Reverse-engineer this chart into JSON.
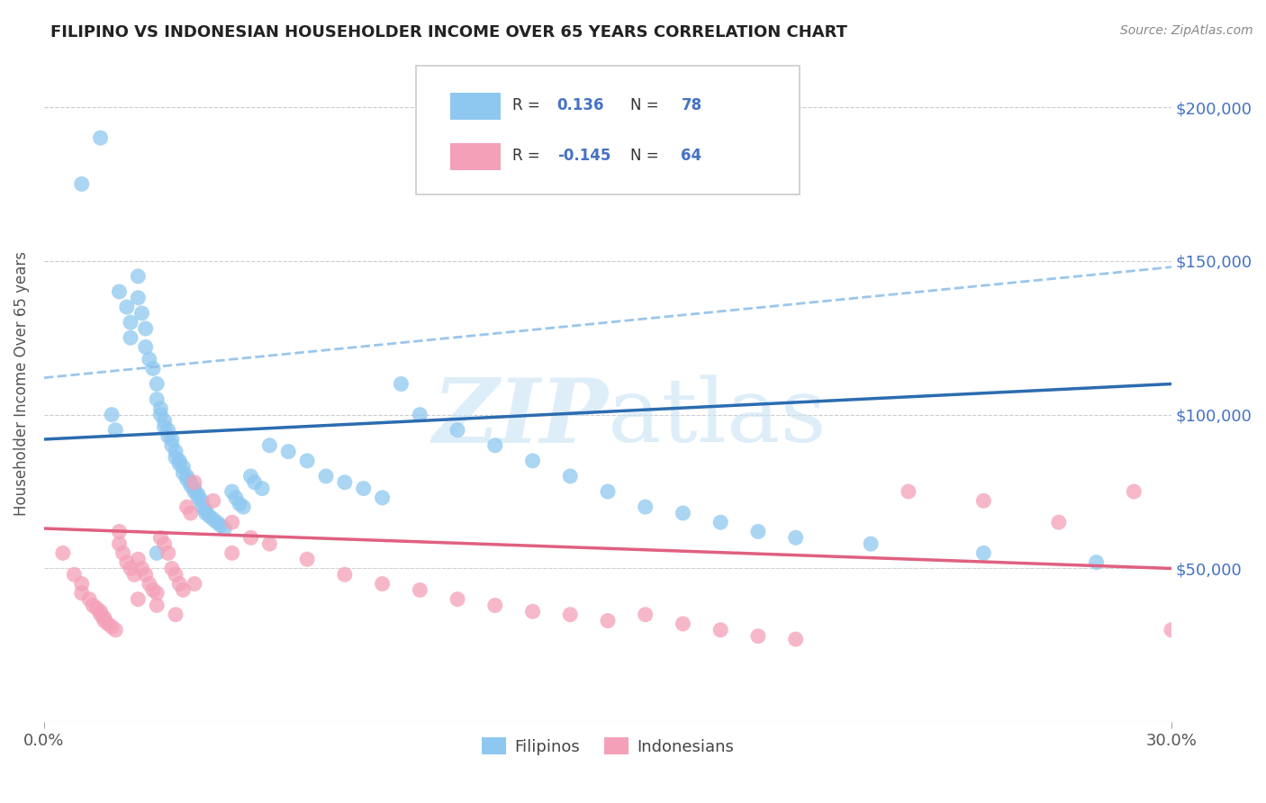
{
  "title": "FILIPINO VS INDONESIAN HOUSEHOLDER INCOME OVER 65 YEARS CORRELATION CHART",
  "source": "Source: ZipAtlas.com",
  "ylabel": "Householder Income Over 65 years",
  "xlim": [
    0.0,
    30.0
  ],
  "ylim": [
    0,
    220000
  ],
  "yticks": [
    50000,
    100000,
    150000,
    200000
  ],
  "ytick_labels": [
    "$50,000",
    "$100,000",
    "$150,000",
    "$200,000"
  ],
  "filipino_R": 0.136,
  "filipino_N": 78,
  "indonesian_R": -0.145,
  "indonesian_N": 64,
  "filipino_color": "#8EC8F0",
  "indonesian_color": "#F4A0B8",
  "trend_filipino_color": "#2B6CB0",
  "trend_indonesian_color": "#E06080",
  "dash_color": "#90C0E8",
  "watermark_color": "#C8E4F5",
  "filipino_x": [
    1.0,
    1.5,
    2.0,
    2.2,
    2.3,
    2.3,
    2.5,
    2.5,
    2.6,
    2.7,
    2.7,
    2.8,
    2.9,
    3.0,
    3.0,
    3.1,
    3.1,
    3.2,
    3.2,
    3.3,
    3.3,
    3.4,
    3.4,
    3.5,
    3.5,
    3.6,
    3.6,
    3.7,
    3.7,
    3.8,
    3.8,
    3.9,
    3.9,
    4.0,
    4.0,
    4.1,
    4.1,
    4.2,
    4.2,
    4.3,
    4.3,
    4.4,
    4.5,
    4.6,
    4.7,
    4.8,
    5.0,
    5.1,
    5.2,
    5.3,
    5.5,
    5.6,
    5.8,
    6.0,
    6.5,
    7.0,
    7.5,
    8.0,
    8.5,
    9.0,
    9.5,
    10.0,
    11.0,
    12.0,
    13.0,
    14.0,
    15.0,
    16.0,
    17.0,
    18.0,
    19.0,
    20.0,
    22.0,
    25.0,
    28.0,
    1.8,
    1.9,
    3.0
  ],
  "filipino_y": [
    175000,
    190000,
    140000,
    135000,
    130000,
    125000,
    145000,
    138000,
    133000,
    128000,
    122000,
    118000,
    115000,
    110000,
    105000,
    102000,
    100000,
    98000,
    96000,
    95000,
    93000,
    92000,
    90000,
    88000,
    86000,
    85000,
    84000,
    83000,
    81000,
    80000,
    79000,
    78000,
    77000,
    76000,
    75000,
    74000,
    73000,
    72000,
    70000,
    69000,
    68000,
    67000,
    66000,
    65000,
    64000,
    63000,
    75000,
    73000,
    71000,
    70000,
    80000,
    78000,
    76000,
    90000,
    88000,
    85000,
    80000,
    78000,
    76000,
    73000,
    110000,
    100000,
    95000,
    90000,
    85000,
    80000,
    75000,
    70000,
    68000,
    65000,
    62000,
    60000,
    58000,
    55000,
    52000,
    100000,
    95000,
    55000
  ],
  "indonesian_x": [
    0.5,
    0.8,
    1.0,
    1.0,
    1.2,
    1.3,
    1.4,
    1.5,
    1.5,
    1.6,
    1.6,
    1.7,
    1.8,
    1.9,
    2.0,
    2.0,
    2.1,
    2.2,
    2.3,
    2.4,
    2.5,
    2.6,
    2.7,
    2.8,
    2.9,
    3.0,
    3.1,
    3.2,
    3.3,
    3.4,
    3.5,
    3.6,
    3.7,
    3.8,
    3.9,
    4.0,
    4.5,
    5.0,
    5.5,
    6.0,
    7.0,
    8.0,
    9.0,
    10.0,
    11.0,
    12.0,
    13.0,
    14.0,
    15.0,
    16.0,
    17.0,
    18.0,
    19.0,
    20.0,
    23.0,
    25.0,
    27.0,
    29.0,
    30.0,
    2.5,
    3.0,
    3.5,
    4.0,
    5.0
  ],
  "indonesian_y": [
    55000,
    48000,
    45000,
    42000,
    40000,
    38000,
    37000,
    36000,
    35000,
    34000,
    33000,
    32000,
    31000,
    30000,
    62000,
    58000,
    55000,
    52000,
    50000,
    48000,
    53000,
    50000,
    48000,
    45000,
    43000,
    42000,
    60000,
    58000,
    55000,
    50000,
    48000,
    45000,
    43000,
    70000,
    68000,
    78000,
    72000,
    65000,
    60000,
    58000,
    53000,
    48000,
    45000,
    43000,
    40000,
    38000,
    36000,
    35000,
    33000,
    35000,
    32000,
    30000,
    28000,
    27000,
    75000,
    72000,
    65000,
    75000,
    30000,
    40000,
    38000,
    35000,
    45000,
    55000
  ]
}
